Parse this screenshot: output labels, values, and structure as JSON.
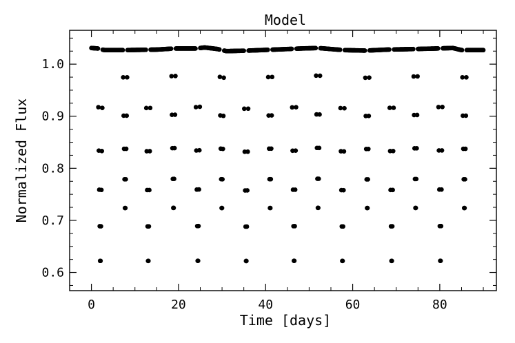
{
  "chart_data": {
    "type": "scatter",
    "title": "Model",
    "xlabel": "Time [days]",
    "ylabel": "Normalized Flux",
    "xlim": [
      -5,
      93
    ],
    "ylim": [
      0.565,
      1.065
    ],
    "xticks": [
      0,
      20,
      40,
      60,
      80
    ],
    "xtick_labels": [
      "0",
      "20",
      "40",
      "60",
      "80"
    ],
    "yticks": [
      0.6,
      0.7,
      0.8,
      0.9,
      1.0
    ],
    "ytick_labels": [
      "0.6",
      "0.7",
      "0.8",
      "0.9",
      "1.0"
    ],
    "grid": false,
    "legend": "none",
    "marker_color": "#000000",
    "x_end": 90,
    "cadence": 0.1,
    "baseline": [
      [
        0.0,
        1.031
      ],
      [
        1.5,
        1.03
      ],
      [
        3.0,
        1.027
      ],
      [
        8.0,
        1.027
      ],
      [
        15.0,
        1.028
      ],
      [
        19.0,
        1.03
      ],
      [
        24.0,
        1.03
      ],
      [
        26.0,
        1.032
      ],
      [
        29.0,
        1.029
      ],
      [
        31.0,
        1.025
      ],
      [
        36.0,
        1.026
      ],
      [
        42.0,
        1.028
      ],
      [
        48.0,
        1.03
      ],
      [
        52.0,
        1.031
      ],
      [
        55.0,
        1.029
      ],
      [
        58.0,
        1.027
      ],
      [
        63.0,
        1.026
      ],
      [
        68.0,
        1.028
      ],
      [
        74.0,
        1.029
      ],
      [
        79.0,
        1.03
      ],
      [
        83.0,
        1.031
      ],
      [
        85.0,
        1.027
      ],
      [
        90.0,
        1.027
      ]
    ],
    "primary_eclipses": {
      "times": [
        2.05,
        13.05,
        24.45,
        35.55,
        46.55,
        57.65,
        68.95,
        80.15
      ],
      "min_flux": 0.59,
      "half_width_days": 0.55
    },
    "secondary_eclipses": {
      "times": [
        7.75,
        18.85,
        29.95,
        41.05,
        52.05,
        63.35,
        74.45,
        85.65
      ],
      "min_flux": 0.697,
      "half_width_days": 0.5
    }
  }
}
